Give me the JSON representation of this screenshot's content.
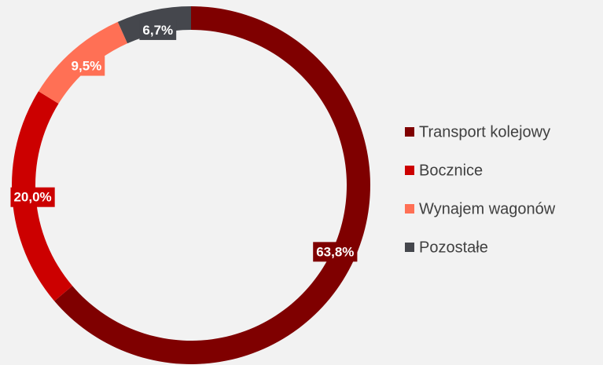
{
  "chart_data": {
    "type": "donut",
    "categories": [
      "Transport kolejowy",
      "Bocznice",
      "Wynajem wagonów",
      "Pozostałe"
    ],
    "values": [
      63.8,
      20.0,
      9.5,
      6.7
    ],
    "value_labels": [
      "63,8%",
      "20,0%",
      "9,5%",
      "6,7%"
    ],
    "colors": [
      "#7f0000",
      "#cc0000",
      "#ff7055",
      "#45474d"
    ],
    "legend": "right"
  }
}
